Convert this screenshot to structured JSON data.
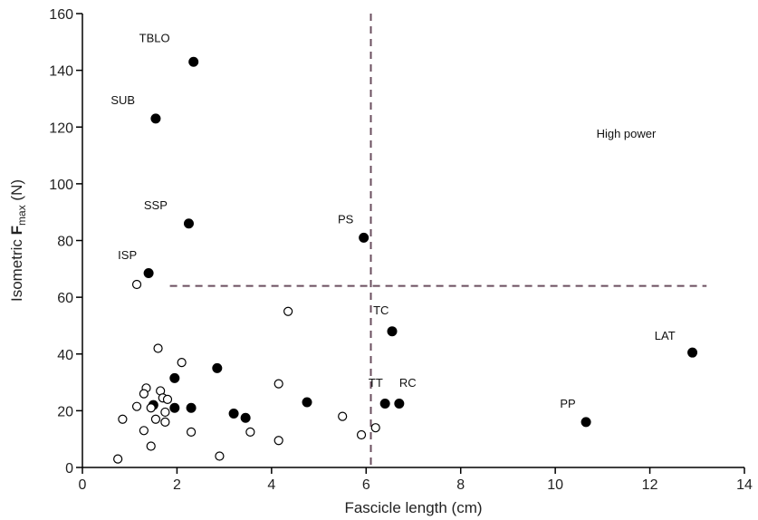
{
  "chart_data": {
    "type": "scatter",
    "title": "",
    "xlabel": "Fascicle length (cm)",
    "ylabel": {
      "prefix": "Isometric ",
      "bold": "F",
      "subscript": "max",
      "suffix": " (N)"
    },
    "xlim": [
      0,
      14
    ],
    "ylim": [
      0,
      160
    ],
    "xticks": [
      0,
      2,
      4,
      6,
      8,
      10,
      12,
      14
    ],
    "yticks": [
      0,
      20,
      40,
      60,
      80,
      100,
      120,
      140,
      160
    ],
    "grid": false,
    "legend": "none",
    "colors": {
      "dashed_line": "#6b4f5f",
      "point": "#000000",
      "axis": "#000000"
    },
    "thresholds": {
      "vertical_x": 6.1,
      "horizontal_y": 64,
      "horizontal_x_range": [
        1.85,
        13.2
      ]
    },
    "annotation": {
      "text": "High power",
      "x": 11.5,
      "y": 122
    },
    "series": [
      {
        "style": "filled",
        "points": [
          {
            "x": 2.35,
            "y": 143,
            "label": "TBLO"
          },
          {
            "x": 1.55,
            "y": 123,
            "label": "SUB"
          },
          {
            "x": 2.25,
            "y": 86,
            "label": "SSP"
          },
          {
            "x": 5.95,
            "y": 81,
            "label": "PS"
          },
          {
            "x": 1.4,
            "y": 68.5,
            "label": "ISP"
          },
          {
            "x": 6.55,
            "y": 48,
            "label": "TC"
          },
          {
            "x": 12.9,
            "y": 40.5,
            "label": "LAT"
          },
          {
            "x": 6.4,
            "y": 22.5,
            "label": "TT"
          },
          {
            "x": 6.7,
            "y": 22.5,
            "label": "RC"
          },
          {
            "x": 10.65,
            "y": 16,
            "label": "PP"
          },
          {
            "x": 1.5,
            "y": 22
          },
          {
            "x": 1.95,
            "y": 31.5
          },
          {
            "x": 1.95,
            "y": 21
          },
          {
            "x": 2.3,
            "y": 21
          },
          {
            "x": 2.85,
            "y": 35
          },
          {
            "x": 3.2,
            "y": 19
          },
          {
            "x": 3.45,
            "y": 17.5
          },
          {
            "x": 4.75,
            "y": 23
          }
        ]
      },
      {
        "style": "open",
        "points": [
          {
            "x": 1.15,
            "y": 64.5
          },
          {
            "x": 4.35,
            "y": 55
          },
          {
            "x": 1.6,
            "y": 42
          },
          {
            "x": 2.1,
            "y": 37
          },
          {
            "x": 1.35,
            "y": 28
          },
          {
            "x": 1.3,
            "y": 26
          },
          {
            "x": 1.65,
            "y": 27
          },
          {
            "x": 1.7,
            "y": 24.5
          },
          {
            "x": 1.8,
            "y": 24
          },
          {
            "x": 1.15,
            "y": 21.5
          },
          {
            "x": 1.45,
            "y": 21
          },
          {
            "x": 1.75,
            "y": 19.5
          },
          {
            "x": 0.85,
            "y": 17
          },
          {
            "x": 1.55,
            "y": 17
          },
          {
            "x": 1.75,
            "y": 16
          },
          {
            "x": 1.3,
            "y": 13
          },
          {
            "x": 2.3,
            "y": 12.5
          },
          {
            "x": 1.45,
            "y": 7.5
          },
          {
            "x": 0.75,
            "y": 3
          },
          {
            "x": 2.9,
            "y": 4
          },
          {
            "x": 3.55,
            "y": 12.5
          },
          {
            "x": 4.15,
            "y": 29.5
          },
          {
            "x": 4.15,
            "y": 9.5
          },
          {
            "x": 5.5,
            "y": 18
          },
          {
            "x": 5.9,
            "y": 11.5
          },
          {
            "x": 6.2,
            "y": 14
          }
        ]
      }
    ],
    "label_offsets": {
      "TBLO": [
        -1.15,
        7
      ],
      "SUB": [
        -0.95,
        5
      ],
      "SSP": [
        -0.95,
        5
      ],
      "PS": [
        -0.55,
        5
      ],
      "ISP": [
        -0.65,
        5
      ],
      "TC": [
        -0.4,
        6
      ],
      "LAT": [
        -0.8,
        4.5
      ],
      "TT": [
        -0.35,
        6
      ],
      "RC": [
        0.0,
        6
      ],
      "PP": [
        -0.55,
        5
      ]
    }
  }
}
